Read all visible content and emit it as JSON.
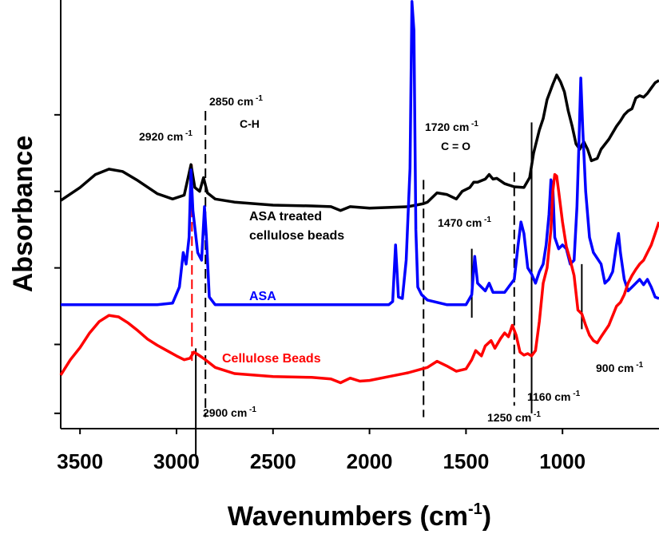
{
  "chart_data": {
    "type": "line",
    "xlabel": "Wavenumbers (cm-1)",
    "xlabel_main": "Wavenumbers (cm",
    "xlabel_sup": "-1",
    "xlabel_close": ")",
    "ylabel": "Absorbance",
    "xlim": [
      3600,
      500
    ],
    "x_reversed": true,
    "xticks": [
      3500,
      3000,
      2500,
      2000,
      1500,
      1000
    ],
    "xtick_labels": [
      "3500",
      "3000",
      "2500",
      "2000",
      "1500",
      "1000"
    ],
    "y_tick_count": 5,
    "grid": false,
    "series": [
      {
        "name": "ASA treated cellulose beads",
        "color": "#000000",
        "points": [
          [
            3600,
            2.38
          ],
          [
            3500,
            2.55
          ],
          [
            3420,
            2.72
          ],
          [
            3350,
            2.79
          ],
          [
            3280,
            2.76
          ],
          [
            3200,
            2.64
          ],
          [
            3100,
            2.47
          ],
          [
            3020,
            2.4
          ],
          [
            2960,
            2.45
          ],
          [
            2925,
            2.85
          ],
          [
            2905,
            2.55
          ],
          [
            2880,
            2.5
          ],
          [
            2860,
            2.68
          ],
          [
            2840,
            2.48
          ],
          [
            2800,
            2.4
          ],
          [
            2700,
            2.36
          ],
          [
            2500,
            2.32
          ],
          [
            2300,
            2.31
          ],
          [
            2200,
            2.3
          ],
          [
            2150,
            2.25
          ],
          [
            2100,
            2.3
          ],
          [
            2000,
            2.28
          ],
          [
            1900,
            2.29
          ],
          [
            1800,
            2.3
          ],
          [
            1720,
            2.34
          ],
          [
            1700,
            2.36
          ],
          [
            1650,
            2.48
          ],
          [
            1600,
            2.46
          ],
          [
            1550,
            2.4
          ],
          [
            1520,
            2.5
          ],
          [
            1480,
            2.55
          ],
          [
            1460,
            2.62
          ],
          [
            1440,
            2.62
          ],
          [
            1400,
            2.66
          ],
          [
            1380,
            2.72
          ],
          [
            1360,
            2.66
          ],
          [
            1340,
            2.67
          ],
          [
            1300,
            2.6
          ],
          [
            1250,
            2.56
          ],
          [
            1200,
            2.55
          ],
          [
            1170,
            2.68
          ],
          [
            1150,
            3.0
          ],
          [
            1120,
            3.3
          ],
          [
            1100,
            3.45
          ],
          [
            1080,
            3.7
          ],
          [
            1050,
            3.9
          ],
          [
            1030,
            4.02
          ],
          [
            1010,
            3.93
          ],
          [
            990,
            3.8
          ],
          [
            970,
            3.55
          ],
          [
            950,
            3.35
          ],
          [
            930,
            3.12
          ],
          [
            910,
            3.05
          ],
          [
            890,
            3.15
          ],
          [
            870,
            3.05
          ],
          [
            850,
            2.9
          ],
          [
            820,
            2.93
          ],
          [
            800,
            3.05
          ],
          [
            760,
            3.18
          ],
          [
            720,
            3.35
          ],
          [
            700,
            3.42
          ],
          [
            680,
            3.5
          ],
          [
            660,
            3.55
          ],
          [
            640,
            3.58
          ],
          [
            620,
            3.72
          ],
          [
            600,
            3.75
          ],
          [
            580,
            3.73
          ],
          [
            560,
            3.78
          ],
          [
            540,
            3.85
          ],
          [
            520,
            3.92
          ],
          [
            500,
            3.95
          ]
        ]
      },
      {
        "name": "ASA",
        "color": "#0000ff",
        "points": [
          [
            3600,
            1.02
          ],
          [
            3100,
            1.02
          ],
          [
            3020,
            1.04
          ],
          [
            2985,
            1.25
          ],
          [
            2965,
            1.7
          ],
          [
            2950,
            1.55
          ],
          [
            2935,
            1.9
          ],
          [
            2925,
            2.78
          ],
          [
            2915,
            2.25
          ],
          [
            2890,
            1.7
          ],
          [
            2870,
            1.6
          ],
          [
            2855,
            2.3
          ],
          [
            2845,
            1.9
          ],
          [
            2830,
            1.12
          ],
          [
            2800,
            1.02
          ],
          [
            2000,
            1.02
          ],
          [
            1900,
            1.02
          ],
          [
            1880,
            1.06
          ],
          [
            1865,
            1.8
          ],
          [
            1850,
            1.12
          ],
          [
            1830,
            1.1
          ],
          [
            1810,
            1.6
          ],
          [
            1790,
            2.8
          ],
          [
            1780,
            4.98
          ],
          [
            1770,
            4.6
          ],
          [
            1760,
            2.0
          ],
          [
            1750,
            1.25
          ],
          [
            1730,
            1.15
          ],
          [
            1700,
            1.08
          ],
          [
            1600,
            1.02
          ],
          [
            1500,
            1.02
          ],
          [
            1470,
            1.15
          ],
          [
            1455,
            1.65
          ],
          [
            1440,
            1.3
          ],
          [
            1420,
            1.25
          ],
          [
            1400,
            1.2
          ],
          [
            1380,
            1.3
          ],
          [
            1360,
            1.18
          ],
          [
            1300,
            1.18
          ],
          [
            1250,
            1.35
          ],
          [
            1230,
            1.8
          ],
          [
            1215,
            2.1
          ],
          [
            1200,
            1.95
          ],
          [
            1180,
            1.5
          ],
          [
            1160,
            1.42
          ],
          [
            1140,
            1.3
          ],
          [
            1120,
            1.45
          ],
          [
            1100,
            1.55
          ],
          [
            1085,
            1.8
          ],
          [
            1070,
            2.2
          ],
          [
            1060,
            2.65
          ],
          [
            1050,
            2.55
          ],
          [
            1040,
            1.9
          ],
          [
            1020,
            1.75
          ],
          [
            1000,
            1.8
          ],
          [
            980,
            1.75
          ],
          [
            960,
            1.55
          ],
          [
            940,
            1.6
          ],
          [
            925,
            2.3
          ],
          [
            915,
            3.1
          ],
          [
            905,
            3.98
          ],
          [
            895,
            3.3
          ],
          [
            880,
            2.5
          ],
          [
            860,
            1.9
          ],
          [
            840,
            1.7
          ],
          [
            800,
            1.55
          ],
          [
            780,
            1.3
          ],
          [
            760,
            1.35
          ],
          [
            740,
            1.45
          ],
          [
            720,
            1.8
          ],
          [
            710,
            1.95
          ],
          [
            700,
            1.7
          ],
          [
            680,
            1.35
          ],
          [
            660,
            1.2
          ],
          [
            640,
            1.25
          ],
          [
            620,
            1.3
          ],
          [
            600,
            1.35
          ],
          [
            580,
            1.28
          ],
          [
            560,
            1.35
          ],
          [
            540,
            1.25
          ],
          [
            520,
            1.12
          ],
          [
            500,
            1.1
          ]
        ]
      },
      {
        "name": "Cellulose Beads",
        "color": "#ff0000",
        "points": [
          [
            3600,
            0.1
          ],
          [
            3550,
            0.3
          ],
          [
            3500,
            0.46
          ],
          [
            3450,
            0.65
          ],
          [
            3400,
            0.8
          ],
          [
            3350,
            0.88
          ],
          [
            3300,
            0.86
          ],
          [
            3250,
            0.78
          ],
          [
            3200,
            0.68
          ],
          [
            3150,
            0.57
          ],
          [
            3100,
            0.49
          ],
          [
            3050,
            0.42
          ],
          [
            3000,
            0.35
          ],
          [
            2960,
            0.3
          ],
          [
            2930,
            0.32
          ],
          [
            2910,
            0.4
          ],
          [
            2890,
            0.37
          ],
          [
            2850,
            0.3
          ],
          [
            2800,
            0.2
          ],
          [
            2700,
            0.12
          ],
          [
            2500,
            0.08
          ],
          [
            2300,
            0.07
          ],
          [
            2200,
            0.05
          ],
          [
            2150,
            0.0
          ],
          [
            2100,
            0.06
          ],
          [
            2050,
            0.02
          ],
          [
            2000,
            0.03
          ],
          [
            1900,
            0.08
          ],
          [
            1800,
            0.13
          ],
          [
            1700,
            0.2
          ],
          [
            1650,
            0.28
          ],
          [
            1600,
            0.22
          ],
          [
            1550,
            0.15
          ],
          [
            1500,
            0.18
          ],
          [
            1470,
            0.3
          ],
          [
            1450,
            0.42
          ],
          [
            1420,
            0.35
          ],
          [
            1400,
            0.48
          ],
          [
            1370,
            0.55
          ],
          [
            1350,
            0.45
          ],
          [
            1320,
            0.58
          ],
          [
            1300,
            0.65
          ],
          [
            1280,
            0.6
          ],
          [
            1260,
            0.75
          ],
          [
            1240,
            0.62
          ],
          [
            1220,
            0.4
          ],
          [
            1200,
            0.36
          ],
          [
            1180,
            0.38
          ],
          [
            1160,
            0.35
          ],
          [
            1140,
            0.42
          ],
          [
            1120,
            0.8
          ],
          [
            1100,
            1.3
          ],
          [
            1080,
            1.5
          ],
          [
            1060,
            2.0
          ],
          [
            1050,
            2.5
          ],
          [
            1040,
            2.72
          ],
          [
            1030,
            2.7
          ],
          [
            1020,
            2.5
          ],
          [
            1000,
            2.1
          ],
          [
            980,
            1.78
          ],
          [
            960,
            1.6
          ],
          [
            940,
            1.4
          ],
          [
            920,
            0.95
          ],
          [
            900,
            0.9
          ],
          [
            880,
            0.75
          ],
          [
            860,
            0.62
          ],
          [
            840,
            0.55
          ],
          [
            820,
            0.52
          ],
          [
            800,
            0.6
          ],
          [
            760,
            0.75
          ],
          [
            720,
            1.0
          ],
          [
            700,
            1.05
          ],
          [
            680,
            1.15
          ],
          [
            660,
            1.3
          ],
          [
            640,
            1.4
          ],
          [
            620,
            1.48
          ],
          [
            600,
            1.55
          ],
          [
            580,
            1.6
          ],
          [
            560,
            1.7
          ],
          [
            540,
            1.8
          ],
          [
            520,
            1.95
          ],
          [
            500,
            2.1
          ]
        ]
      }
    ],
    "series_labels": {
      "black_line1": "ASA treated",
      "black_line2": "cellulose beads",
      "blue": "ASA",
      "red": "Cellulose Beads"
    },
    "annotations": [
      {
        "id": "a2920",
        "text": "2920 cm",
        "sup": "-1"
      },
      {
        "id": "a2850",
        "text": "2850 cm",
        "sup": "-1"
      },
      {
        "id": "a2850b",
        "text": "C-H",
        "sup": ""
      },
      {
        "id": "a1720",
        "text": "1720 cm",
        "sup": "-1"
      },
      {
        "id": "a1720b",
        "text": "C = O",
        "sup": ""
      },
      {
        "id": "a1470",
        "text": "1470 cm",
        "sup": "-1"
      },
      {
        "id": "a2900",
        "text": "2900 cm",
        "sup": "-1"
      },
      {
        "id": "a1250",
        "text": "1250 cm",
        "sup": "-1"
      },
      {
        "id": "a1160",
        "text": "1160 cm",
        "sup": "-1"
      },
      {
        "id": "a900",
        "text": "900 cm",
        "sup": "-1"
      }
    ],
    "marker_lines": [
      {
        "x": 2920,
        "style": "dashed",
        "color": "#ff0000"
      },
      {
        "x": 2850,
        "style": "dashed",
        "color": "#000000"
      },
      {
        "x": 2900,
        "style": "solid",
        "color": "#000000"
      },
      {
        "x": 1720,
        "style": "dashed",
        "color": "#000000"
      },
      {
        "x": 1470,
        "style": "solid",
        "color": "#000000"
      },
      {
        "x": 1250,
        "style": "dashed",
        "color": "#000000"
      },
      {
        "x": 1160,
        "style": "solid",
        "color": "#000000"
      },
      {
        "x": 900,
        "style": "solid",
        "color": "#000000"
      }
    ]
  }
}
